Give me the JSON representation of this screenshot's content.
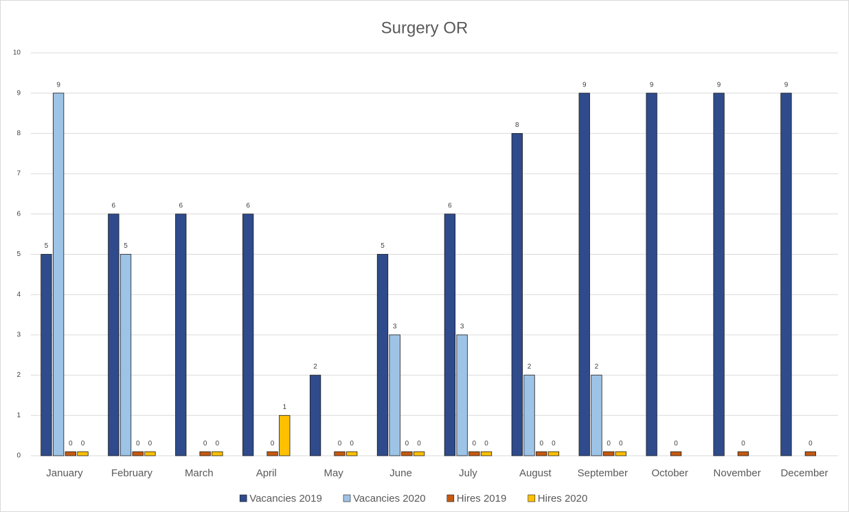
{
  "chart_data": {
    "type": "bar",
    "title": "Surgery OR",
    "categories": [
      "January",
      "February",
      "March",
      "April",
      "May",
      "June",
      "July",
      "August",
      "September",
      "October",
      "November",
      "December"
    ],
    "series": [
      {
        "name": "Vacancies 2019",
        "color": "#2f4b8c",
        "values": [
          5,
          6,
          6,
          6,
          2,
          5,
          6,
          8,
          9,
          9,
          9,
          9
        ]
      },
      {
        "name": "Vacancies 2020",
        "color": "#9dc3e6",
        "values": [
          9,
          5,
          null,
          null,
          null,
          3,
          3,
          2,
          2,
          null,
          null,
          null
        ]
      },
      {
        "name": "Hires 2019",
        "color": "#c55a11",
        "values": [
          0.1,
          0.1,
          0.1,
          0.1,
          0.1,
          0.1,
          0.1,
          0.1,
          0.1,
          0.1,
          0.1,
          0.1
        ],
        "value_labels": [
          "0",
          "0",
          "0",
          "0",
          "0",
          "0",
          "0",
          "0",
          "0",
          "0",
          "0",
          "0"
        ]
      },
      {
        "name": "Hires 2020",
        "color": "#ffc000",
        "values": [
          0.1,
          0.1,
          0.1,
          1,
          0.1,
          0.1,
          0.1,
          0.1,
          0.1,
          null,
          null,
          null
        ],
        "value_labels": [
          "0",
          "0",
          "0",
          "1",
          "0",
          "0",
          "0",
          "0",
          "0",
          null,
          null,
          null
        ]
      }
    ],
    "ylim": [
      0,
      10
    ],
    "yticks": [
      0,
      1,
      2,
      3,
      4,
      5,
      6,
      7,
      8,
      9,
      10
    ],
    "grid": true,
    "legend": "bottom"
  }
}
